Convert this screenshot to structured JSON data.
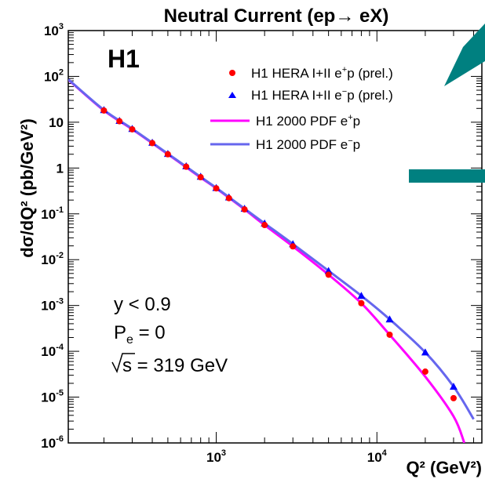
{
  "chart_data": {
    "type": "scatter",
    "title": "Neutral Current (ep→ eX)",
    "xlabel": "Q² (GeV²)",
    "ylabel": "dσ/dQ² (pb/GeV²)",
    "x_scale": "log",
    "y_scale": "log",
    "xlim": [
      120,
      45000
    ],
    "ylim": [
      1e-06,
      1000
    ],
    "x_ticks": [
      {
        "value": 1000,
        "mantissa": "10",
        "exponent": "3"
      },
      {
        "value": 10000,
        "mantissa": "10",
        "exponent": "4"
      }
    ],
    "y_ticks": [
      {
        "value": 1000,
        "mantissa": "10",
        "exponent": "3"
      },
      {
        "value": 100,
        "mantissa": "10",
        "exponent": "2"
      },
      {
        "value": 10,
        "mantissa": "10",
        "exponent": ""
      },
      {
        "value": 1,
        "mantissa": "1",
        "exponent": ""
      },
      {
        "value": 0.1,
        "mantissa": "10",
        "exponent": "-1"
      },
      {
        "value": 0.01,
        "mantissa": "10",
        "exponent": "-2"
      },
      {
        "value": 0.001,
        "mantissa": "10",
        "exponent": "-3"
      },
      {
        "value": 0.0001,
        "mantissa": "10",
        "exponent": "-4"
      },
      {
        "value": 1e-05,
        "mantissa": "10",
        "exponent": "-5"
      },
      {
        "value": 1e-06,
        "mantissa": "10",
        "exponent": "-6"
      }
    ],
    "series": [
      {
        "name": "H1 HERA I+II e⁺p (prel.)",
        "kind": "points",
        "marker": "circle",
        "color": "#ff0000",
        "x": [
          200,
          250,
          300,
          400,
          500,
          650,
          800,
          1000,
          1200,
          1500,
          2000,
          3000,
          5000,
          8000,
          12000,
          20000,
          30000
        ],
        "y": [
          18,
          10.5,
          7,
          3.5,
          2.0,
          1.07,
          0.63,
          0.36,
          0.22,
          0.125,
          0.057,
          0.0195,
          0.0047,
          0.00112,
          0.00023,
          3.6e-05,
          9.5e-06
        ]
      },
      {
        "name": "H1 HERA I+II e⁻p (prel.)",
        "kind": "points",
        "marker": "triangle",
        "color": "#0000ff",
        "x": [
          200,
          250,
          300,
          400,
          500,
          650,
          800,
          1000,
          1200,
          1500,
          2000,
          3000,
          5000,
          8000,
          12000,
          20000,
          30000
        ],
        "y": [
          18.5,
          10.8,
          7.2,
          3.6,
          2.05,
          1.1,
          0.65,
          0.37,
          0.23,
          0.13,
          0.062,
          0.022,
          0.0057,
          0.00163,
          0.0005,
          9.5e-05,
          1.7e-05
        ]
      },
      {
        "name": "H1 2000 PDF e⁺p",
        "kind": "line",
        "color": "#ff00ff",
        "x": [
          120,
          200,
          300,
          500,
          800,
          1000,
          1500,
          2000,
          3000,
          5000,
          8000,
          12000,
          20000,
          30000,
          35000
        ],
        "y": [
          85,
          18,
          7.0,
          2.0,
          0.62,
          0.36,
          0.125,
          0.057,
          0.0195,
          0.0047,
          0.00112,
          0.00023,
          2.8e-05,
          3.8e-06,
          1e-06
        ]
      },
      {
        "name": "H1 2000 PDF e⁻p",
        "kind": "line",
        "color": "#6666ee",
        "x": [
          120,
          200,
          300,
          500,
          800,
          1000,
          1500,
          2000,
          3000,
          5000,
          8000,
          12000,
          20000,
          30000,
          40000
        ],
        "y": [
          86,
          18.5,
          7.2,
          2.05,
          0.64,
          0.37,
          0.13,
          0.062,
          0.022,
          0.0057,
          0.00163,
          0.0005,
          9.5e-05,
          1.7e-05,
          3.3e-06
        ]
      }
    ],
    "legend": {
      "placement": "top-right",
      "entries": [
        {
          "prefix": "H1 HERA I+II ",
          "particle": "e",
          "charge": "+",
          "suffix": "p (prel.)"
        },
        {
          "prefix": "H1 HERA I+II ",
          "particle": "e",
          "charge": "−",
          "suffix": "p (prel.)"
        },
        {
          "prefix": "H1 2000 PDF ",
          "particle": "e",
          "charge": "+",
          "suffix": "p"
        },
        {
          "prefix": "H1 2000 PDF ",
          "particle": "e",
          "charge": "−",
          "suffix": "p"
        }
      ]
    },
    "annotations": {
      "experiment": "H1",
      "cut": "y < 0.9",
      "polarization_symbol": "P",
      "polarization_sub": "e",
      "polarization_value": " = 0",
      "energy_symbol": "s",
      "energy_value": " = 319 GeV"
    },
    "teal_color": "#008080",
    "grid": false
  }
}
